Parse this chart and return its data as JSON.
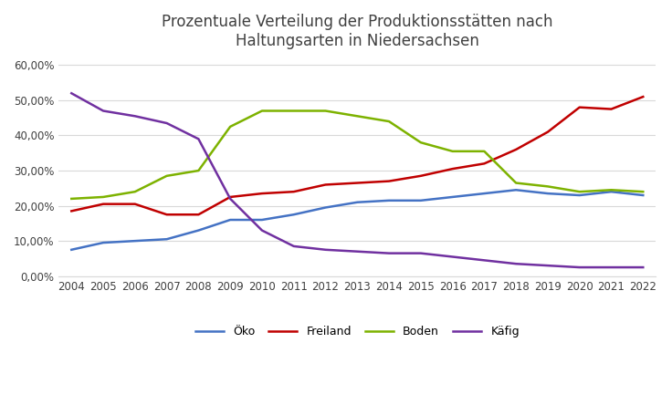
{
  "title": "Prozentuale Verteilung der Produktionsstätten nach\nHaltungsarten in Niedersachsen",
  "years": [
    2004,
    2005,
    2006,
    2007,
    2008,
    2009,
    2010,
    2011,
    2012,
    2013,
    2014,
    2015,
    2016,
    2017,
    2018,
    2019,
    2020,
    2021,
    2022
  ],
  "oeko": [
    0.075,
    0.095,
    0.1,
    0.105,
    0.13,
    0.16,
    0.16,
    0.175,
    0.195,
    0.21,
    0.215,
    0.215,
    0.225,
    0.235,
    0.245,
    0.235,
    0.23,
    0.24,
    0.23
  ],
  "freiland": [
    0.185,
    0.205,
    0.205,
    0.175,
    0.175,
    0.225,
    0.235,
    0.24,
    0.26,
    0.265,
    0.27,
    0.285,
    0.305,
    0.32,
    0.36,
    0.41,
    0.48,
    0.475,
    0.51
  ],
  "boden": [
    0.22,
    0.225,
    0.24,
    0.285,
    0.3,
    0.425,
    0.47,
    0.47,
    0.47,
    0.455,
    0.44,
    0.38,
    0.355,
    0.355,
    0.265,
    0.255,
    0.24,
    0.245,
    0.24
  ],
  "kaefig": [
    0.52,
    0.47,
    0.455,
    0.435,
    0.39,
    0.22,
    0.13,
    0.085,
    0.075,
    0.07,
    0.065,
    0.065,
    0.055,
    0.045,
    0.035,
    0.03,
    0.025,
    0.025,
    0.025
  ],
  "oeko_color": "#4472C4",
  "freiland_color": "#C00000",
  "boden_color": "#7DB200",
  "kaefig_color": "#7030A0",
  "ylim": [
    0.0,
    0.62
  ],
  "yticks": [
    0.0,
    0.1,
    0.2,
    0.3,
    0.4,
    0.5,
    0.6
  ],
  "ytick_labels": [
    "0,00%",
    "10,00%",
    "20,00%",
    "30,00%",
    "40,00%",
    "50,00%",
    "60,00%"
  ],
  "legend_labels": [
    "Öko",
    "Freiland",
    "Boden",
    "Käfig"
  ],
  "bg_color": "#FFFFFF",
  "grid_color": "#D9D9D9",
  "title_color": "#404040",
  "title_fontsize": 12,
  "tick_fontsize": 8.5,
  "legend_fontsize": 9
}
